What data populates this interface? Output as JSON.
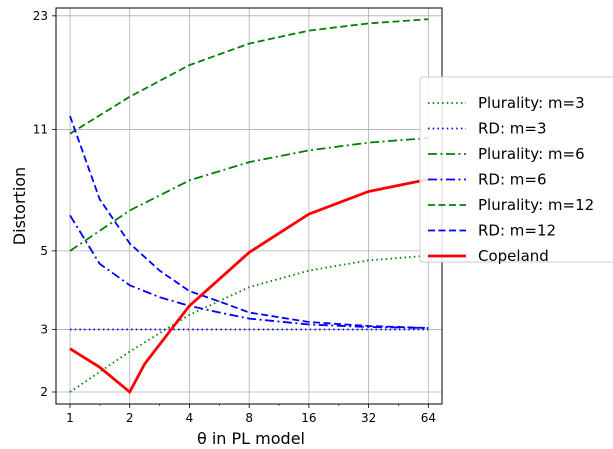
{
  "chart_data": {
    "type": "line",
    "xlabel": "θ in PL model",
    "ylabel": "Distortion",
    "xscale": "log2",
    "yscale": "log",
    "xlim": [
      0.85,
      75
    ],
    "ylim": [
      1.85,
      24.2
    ],
    "grid": true,
    "legend_placement": "right",
    "x_ticks": [
      1,
      2,
      4,
      8,
      16,
      32,
      64
    ],
    "x_tick_labels": [
      "1",
      "2",
      "4",
      "8",
      "16",
      "32",
      "64"
    ],
    "y_ticks": [
      2,
      3,
      5,
      11,
      23
    ],
    "y_tick_labels": [
      "2",
      "3",
      "5",
      "11",
      "23"
    ],
    "series": [
      {
        "name": "Plurality: m=3",
        "color": "#008000",
        "dash": "dotted",
        "x": [
          1,
          2,
          4,
          8,
          16,
          32,
          64
        ],
        "y": [
          2.0,
          2.6,
          3.3,
          3.95,
          4.4,
          4.7,
          4.85
        ]
      },
      {
        "name": "RD: m=3",
        "color": "#0000ff",
        "dash": "dotted",
        "x": [
          1,
          2,
          4,
          8,
          16,
          32,
          64
        ],
        "y": [
          3.0,
          3.0,
          3.0,
          3.0,
          3.0,
          3.0,
          3.0
        ]
      },
      {
        "name": "Plurality: m=6",
        "color": "#008000",
        "dash": "dashdot",
        "x": [
          1,
          2,
          4,
          8,
          16,
          32,
          64
        ],
        "y": [
          5.0,
          6.5,
          7.9,
          8.9,
          9.6,
          10.1,
          10.4
        ]
      },
      {
        "name": "RD: m=6",
        "color": "#0000ff",
        "dash": "dashdot",
        "x": [
          1,
          1.41,
          2,
          2.83,
          4,
          5.66,
          8,
          16,
          32,
          64
        ],
        "y": [
          6.3,
          4.6,
          4.0,
          3.7,
          3.5,
          3.35,
          3.22,
          3.1,
          3.05,
          3.03
        ]
      },
      {
        "name": "Plurality: m=12",
        "color": "#008000",
        "dash": "dashed",
        "x": [
          1,
          2,
          4,
          8,
          16,
          32,
          64
        ],
        "y": [
          10.7,
          13.6,
          16.7,
          19.2,
          20.9,
          21.9,
          22.5
        ]
      },
      {
        "name": "RD: m=12",
        "color": "#0000ff",
        "dash": "dashed",
        "x": [
          1,
          1.41,
          2,
          2.83,
          4,
          5.66,
          8,
          16,
          32,
          64
        ],
        "y": [
          12.0,
          7.0,
          5.25,
          4.4,
          3.85,
          3.6,
          3.35,
          3.15,
          3.07,
          3.03
        ]
      },
      {
        "name": "Copeland",
        "color": "#ff0000",
        "dash": "solid",
        "x": [
          1,
          1.41,
          2,
          2.38,
          4,
          8,
          16,
          32,
          64
        ],
        "y": [
          2.65,
          2.35,
          2.0,
          2.4,
          3.5,
          4.95,
          6.35,
          7.35,
          7.95
        ]
      }
    ]
  }
}
